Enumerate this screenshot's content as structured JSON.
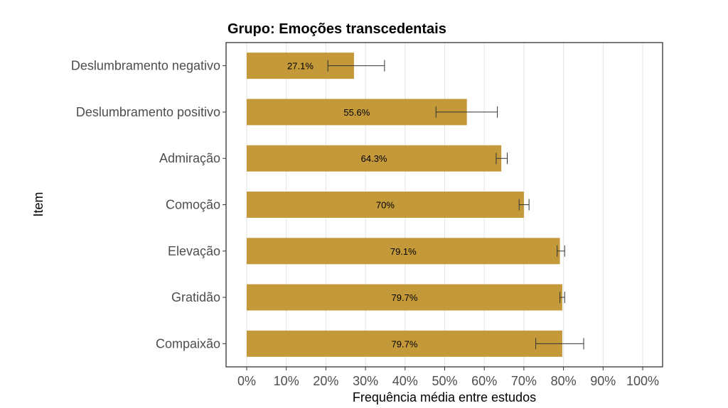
{
  "chart_data": {
    "type": "bar",
    "orientation": "horizontal",
    "title": "Grupo: Emoções transcedentais",
    "xlabel": "Frequência média entre estudos",
    "ylabel": "Item",
    "categories": [
      "Deslumbramento negativo",
      "Deslumbramento positivo",
      "Admiração",
      "Comoção",
      "Elevação",
      "Gratidão",
      "Compaixão"
    ],
    "values": [
      27.1,
      55.6,
      64.3,
      70,
      79.1,
      79.7,
      79.7
    ],
    "data_labels": [
      "27.1%",
      "55.6%",
      "64.3%",
      "70%",
      "79.1%",
      "79.7%",
      "79.7%"
    ],
    "error_bars": [
      {
        "low": 20.5,
        "high": 34.8
      },
      {
        "low": 47.8,
        "high": 63.3
      },
      {
        "low": 63.0,
        "high": 65.8
      },
      {
        "low": 68.8,
        "high": 71.3
      },
      {
        "low": 78.4,
        "high": 80.3
      },
      {
        "low": 79.1,
        "high": 80.3
      },
      {
        "low": 73.0,
        "high": 85.1
      }
    ],
    "xlim": [
      0,
      100
    ],
    "xticks": [
      "0%",
      "10%",
      "20%",
      "30%",
      "40%",
      "50%",
      "60%",
      "70%",
      "80%",
      "90%",
      "100%"
    ],
    "bar_color": "#c4993a",
    "grid": true
  }
}
